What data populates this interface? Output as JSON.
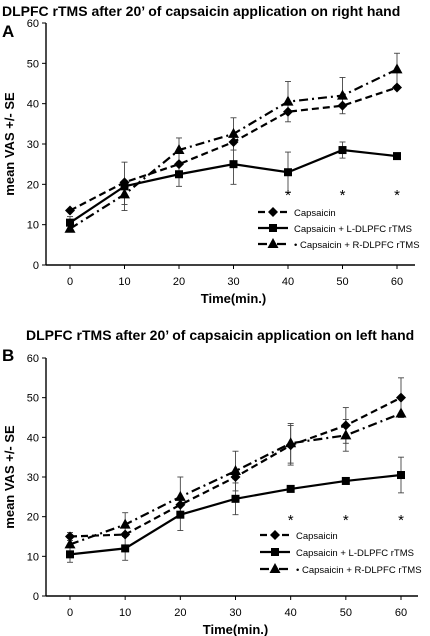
{
  "chart_data": [
    {
      "type": "line",
      "panel_label": "A",
      "title": "DLPFC rTMS after 20’ of capsaicin application on right hand",
      "xlabel": "Time(min.)",
      "ylabel": "mean VAS +/- SE",
      "x": [
        0,
        10,
        20,
        30,
        40,
        50,
        60
      ],
      "ylim": [
        0,
        60
      ],
      "yticks": [
        0,
        10,
        20,
        30,
        40,
        50,
        60
      ],
      "grid": false,
      "legend_position": "bottom-right",
      "series": [
        {
          "name": "Capsaicin",
          "values": [
            13.5,
            20.5,
            25,
            30.5,
            38,
            39.5,
            44
          ],
          "marker": "diamond",
          "line": "dash",
          "error": [
            0,
            0,
            0,
            0,
            0,
            0,
            0
          ]
        },
        {
          "name": "Capsaicin + L-DLPFC rTMS",
          "values": [
            10.5,
            19.5,
            22.5,
            25,
            23,
            28.5,
            27
          ],
          "marker": "square",
          "line": "solid",
          "error": [
            1.5,
            6,
            3,
            5,
            5,
            2,
            0
          ]
        },
        {
          "name": "• Capsaicin + R-DLPFC rTMS",
          "values": [
            9,
            17.5,
            28.5,
            32.5,
            40.5,
            42,
            48.5
          ],
          "marker": "triangle",
          "line": "dashdot",
          "error": [
            0,
            2.5,
            3,
            4,
            5,
            4.5,
            4
          ]
        }
      ],
      "significance": [
        "*",
        "*",
        "*"
      ],
      "significance_x": [
        40,
        50,
        60
      ]
    },
    {
      "type": "line",
      "panel_label": "B",
      "title": "DLPFC rTMS after 20’ of capsaicin application on left hand",
      "xlabel": "Time(min.)",
      "ylabel": "mean VAS +/- SE",
      "x": [
        0,
        10,
        20,
        30,
        40,
        50,
        60
      ],
      "ylim": [
        0,
        60
      ],
      "yticks": [
        0,
        10,
        20,
        30,
        40,
        50,
        60
      ],
      "grid": false,
      "legend_position": "bottom-right",
      "series": [
        {
          "name": "Capsaicin",
          "values": [
            15,
            15.5,
            23,
            30,
            38,
            43,
            50
          ],
          "marker": "diamond",
          "line": "dash",
          "error": [
            1,
            0,
            0,
            0,
            5,
            4.5,
            5
          ]
        },
        {
          "name": "Capsaicin + L-DLPFC rTMS",
          "values": [
            10.5,
            12,
            20.5,
            24.5,
            27,
            29,
            30.5
          ],
          "marker": "square",
          "line": "solid",
          "error": [
            2,
            3,
            4,
            4,
            0,
            0,
            4.5
          ]
        },
        {
          "name": "• Capsaicin + R-DLPFC rTMS",
          "values": [
            13,
            18,
            25,
            31.5,
            38.5,
            40.5,
            46
          ],
          "marker": "triangle",
          "line": "dashdot",
          "error": [
            0,
            3,
            5,
            5,
            5,
            4,
            0
          ]
        }
      ],
      "significance": [
        "*",
        "*",
        "*"
      ],
      "significance_x": [
        40,
        50,
        60
      ]
    }
  ]
}
